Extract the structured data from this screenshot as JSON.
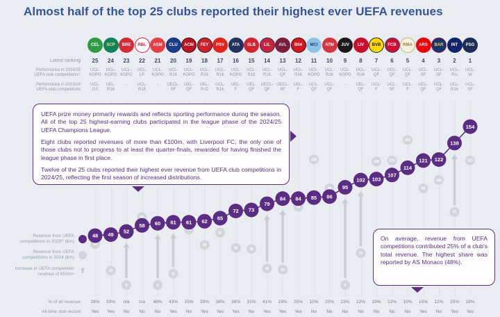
{
  "title": "Almost half of the top 25 clubs reported their highest ever UEFA revenues",
  "accent_colors": {
    "purple": "#5b2c83",
    "gray_dot": "#d2d6db",
    "gray_arrow": "#c8cdd2",
    "title_blue": "#35539c"
  },
  "rows": {
    "latest_ranking": "Latest ranking",
    "perf_2425_line1": "Performance in 2024/25",
    "perf_2425_line2": "UEFA club competitions¹⁾",
    "perf_2324_line1": "Performance in 2023/24",
    "perf_2324_line2": "UEFA club competitions",
    "pct_label": "% of all revenue",
    "record_label": "All-time club record"
  },
  "legend": [
    {
      "label": "Revenue from UEFA competitions in 2025²⁾ (€m)",
      "symbol": "purple-dot"
    },
    {
      "label": "Revenue from UEFA competitions in 2024 (€m)",
      "symbol": "gray-dot"
    },
    {
      "label": "Increase in UEFA competition revenue of €50m+",
      "symbol": "up-arrow"
    }
  ],
  "annotations": {
    "box1": [
      "UEFA prize money primarily rewards and reflects sporting performance during the season. All of the top 25 highest-earning clubs participated in the league phase of the 2024/25 UEFA Champions League.",
      "Eight clubs reported revenues of more than €100m, with Liverpool FC, the only one of those clubs not to progress to at least the quarter-finals, rewarded for having finished the league phase in first place.",
      "Twelve of the 25 clubs reported their highest ever revenue from UEFA club competitions in 2024/25, reflecting the first season of increased distributions."
    ],
    "box2": "On average, revenue from UEFA competitions contributed 25% of a club's total revenue. The highest share was reported by AS Monaco (48%)."
  },
  "clubs": [
    {
      "rank": 25,
      "name": "celtic",
      "abbr": "CEL",
      "logo_bg": "#2e9b46",
      "logo_fg": "#ffffff",
      "logo_border": "#2e9b46",
      "perf_2425": "UCL-KOPO",
      "perf_2324": "UCL-GS",
      "pct": "28%",
      "record": "Yes"
    },
    {
      "rank": 24,
      "name": "sporting-cp",
      "abbr": "SCP",
      "logo_bg": "#11835a",
      "logo_fg": "#ffe27a",
      "logo_border": "#11835a",
      "perf_2425": "UCL-KOPO",
      "perf_2324": "UEL-R16",
      "pct": "33%",
      "record": "Yes"
    },
    {
      "rank": 23,
      "name": "brest",
      "abbr": "BRE",
      "logo_bg": "#d52b35",
      "logo_fg": "#ffffff",
      "logo_border": "#d52b35",
      "perf_2425": "UCL-KOPO",
      "perf_2324": "-",
      "pct": "n/a",
      "record": "No"
    },
    {
      "rank": 22,
      "name": "rb-leipzig",
      "abbr": "RBL",
      "logo_bg": "#ffffff",
      "logo_fg": "#dd1438",
      "logo_border": "#dd1438",
      "perf_2425": "UCL-LP",
      "perf_2324": "UCL-R16",
      "pct": "n/a",
      "record": "No"
    },
    {
      "rank": 21,
      "name": "monaco",
      "abbr": "ASM",
      "logo_bg": "#e53e47",
      "logo_fg": "#ffffff",
      "logo_border": "#e53e47",
      "perf_2425": "UCL-KOPO",
      "perf_2324": "-",
      "pct": "48%",
      "record": "No"
    },
    {
      "rank": 20,
      "name": "club-brugge",
      "abbr": "CLU",
      "logo_bg": "#1b3c8c",
      "logo_fg": "#ffffff",
      "logo_border": "#10265c",
      "perf_2425": "UCL-R16",
      "perf_2324": "UECL-SF",
      "pct": "43%",
      "record": "Yes"
    },
    {
      "rank": 19,
      "name": "ac-milan",
      "abbr": "ACM",
      "logo_bg": "#c0121f",
      "logo_fg": "#ffffff",
      "logo_border": "#1a1a1a",
      "perf_2425": "UCL-KOPO",
      "perf_2324": "UEL-QF",
      "pct": "15%",
      "record": "No"
    },
    {
      "rank": 18,
      "name": "feyenoord",
      "abbr": "FEY",
      "logo_bg": "#d1202b",
      "logo_fg": "#ffffff",
      "logo_border": "#1a1a1a",
      "perf_2425": "UCL-R16",
      "perf_2324": "UEL-P-O",
      "pct": "39%",
      "record": "Yes"
    },
    {
      "rank": 17,
      "name": "psv",
      "abbr": "PSV",
      "logo_bg": "#e3231c",
      "logo_fg": "#ffffff",
      "logo_border": "#e3231c",
      "perf_2425": "UCL-R16",
      "perf_2324": "UCL-R16",
      "pct": "38%",
      "record": "Yes"
    },
    {
      "rank": 16,
      "name": "atalanta",
      "abbr": "ATA",
      "logo_bg": "#23315e",
      "logo_fg": "#ffffff",
      "logo_border": "#23315e",
      "perf_2425": "UCL-KOPO",
      "perf_2324": "UEL-F",
      "pct": "36%",
      "record": "Yes"
    },
    {
      "rank": 15,
      "name": "benfica",
      "abbr": "SLB",
      "logo_bg": "#d32330",
      "logo_fg": "#ffffff",
      "logo_border": "#d32330",
      "perf_2425": "UCL-R16",
      "perf_2324": "UEL-QF",
      "pct": "31%",
      "record": "No"
    },
    {
      "rank": 14,
      "name": "lille",
      "abbr": "LIL",
      "logo_bg": "#ca223a",
      "logo_fg": "#ffffff",
      "logo_border": "#1f2f56",
      "perf_2425": "UCL-R16",
      "perf_2324": "UECL-QF",
      "pct": "41%",
      "record": "Yes"
    },
    {
      "rank": 13,
      "name": "aston-villa",
      "abbr": "AVL",
      "logo_bg": "#7a1e3c",
      "logo_fg": "#cfe4f4",
      "logo_border": "#7a1e3c",
      "perf_2425": "UCL-QF",
      "perf_2324": "UECL-SF",
      "pct": "19%",
      "record": "Yes"
    },
    {
      "rank": 12,
      "name": "leverkusen",
      "abbr": "B04",
      "logo_bg": "#d8141c",
      "logo_fg": "#ffffff",
      "logo_border": "#1a1a1a",
      "perf_2425": "UCL-R16",
      "perf_2324": "UEL-F",
      "pct": "25%",
      "record": "Yes"
    },
    {
      "rank": 11,
      "name": "man-city",
      "abbr": "MCI",
      "logo_bg": "#8ec3e8",
      "logo_fg": "#17406b",
      "logo_border": "#8ec3e8",
      "perf_2425": "UCL-KOPO",
      "perf_2324": "UCL-QF",
      "pct": "10%",
      "record": "No"
    },
    {
      "rank": 10,
      "name": "atletico",
      "abbr": "ATM",
      "logo_bg": "#d6343f",
      "logo_fg": "#ffffff",
      "logo_border": "#d6343f",
      "perf_2425": "UCL-R16",
      "perf_2324": "UCL-QF",
      "pct": "20%",
      "record": "No"
    },
    {
      "rank": 9,
      "name": "juventus",
      "abbr": "JUV",
      "logo_bg": "#1a1a1a",
      "logo_fg": "#ffffff",
      "logo_border": "#1a1a1a",
      "perf_2425": "UCL-KOPO",
      "perf_2324": "-",
      "pct": "23%",
      "record": "No"
    },
    {
      "rank": 8,
      "name": "liverpool",
      "abbr": "LIV",
      "logo_bg": "#c8102e",
      "logo_fg": "#ffffff",
      "logo_border": "#c8102e",
      "perf_2425": "UCL-R16",
      "perf_2324": "UEL-QF",
      "pct": "12%",
      "record": "No"
    },
    {
      "rank": 7,
      "name": "dortmund",
      "abbr": "BVB",
      "logo_bg": "#ffd900",
      "logo_fg": "#1a1a1a",
      "logo_border": "#1a1a1a",
      "perf_2425": "UCL-QF",
      "perf_2324": "UCL-F",
      "pct": "19%",
      "record": "No"
    },
    {
      "rank": 6,
      "name": "bayern",
      "abbr": "FCB",
      "logo_bg": "#d20a2e",
      "logo_fg": "#ffffff",
      "logo_border": "#1f4e8c",
      "perf_2425": "UCL-QF",
      "perf_2324": "UCL-SF",
      "pct": "12%",
      "record": "No"
    },
    {
      "rank": 5,
      "name": "real-madrid",
      "abbr": "RMA",
      "logo_bg": "#f3f1e7",
      "logo_fg": "#9a7d2e",
      "logo_border": "#c9b35c",
      "perf_2425": "UCL-QF",
      "perf_2324": "UCL-F",
      "pct": "10%",
      "record": "No"
    },
    {
      "rank": 4,
      "name": "arsenal",
      "abbr": "ARS",
      "logo_bg": "#ef0107",
      "logo_fg": "#ffffff",
      "logo_border": "#ef0107",
      "perf_2425": "UCL-SF",
      "perf_2324": "UCL-QF",
      "pct": "15%",
      "record": "Yes"
    },
    {
      "rank": 3,
      "name": "barcelona",
      "abbr": "BAR",
      "logo_bg": "#15356e",
      "logo_fg": "#ffce46",
      "logo_border": "#8a1538",
      "perf_2425": "UCL-SF",
      "perf_2324": "UCL-QF",
      "pct": "12%",
      "record": "No"
    },
    {
      "rank": 2,
      "name": "inter",
      "abbr": "INT",
      "logo_bg": "#10246c",
      "logo_fg": "#ffffff",
      "logo_border": "#10246c",
      "perf_2425": "UCL-RU",
      "perf_2324": "UCL-R16",
      "pct": "25%",
      "record": "Yes"
    },
    {
      "rank": 1,
      "name": "psg",
      "abbr": "PSG",
      "logo_bg": "#1c2e54",
      "logo_fg": "#ffffff",
      "logo_border": "#1c2e54",
      "perf_2425": "UCL-W",
      "perf_2324": "UCL-SF",
      "pct": "18%",
      "record": "Yes"
    }
  ],
  "chart_data": {
    "type": "line",
    "title": "Revenue from UEFA competitions by club (ranked 25 to 1)",
    "x_label": "Latest ranking",
    "x": [
      25,
      24,
      23,
      22,
      21,
      20,
      19,
      18,
      17,
      16,
      15,
      14,
      13,
      12,
      11,
      10,
      9,
      8,
      7,
      6,
      5,
      4,
      3,
      2,
      1
    ],
    "series": [
      {
        "name": "Revenue from UEFA competitions in 2025 (€m)",
        "values": [
          48,
          49,
          52,
          58,
          60,
          61,
          61,
          62,
          65,
          72,
          73,
          79,
          84,
          84,
          85,
          86,
          95,
          102,
          103,
          107,
          114,
          121,
          122,
          138,
          154
        ]
      },
      {
        "name": "Revenue from UEFA competitions in 2024 (€m), approximate",
        "values": [
          40,
          14,
          0,
          66,
          0,
          11,
          54,
          39,
          51,
          36,
          35,
          16,
          15,
          76,
          122,
          94,
          0,
          31,
          120,
          121,
          141,
          94,
          102,
          71,
          121
        ]
      }
    ],
    "increase_50m_plus": [
      false,
      false,
      true,
      false,
      true,
      true,
      false,
      false,
      false,
      false,
      false,
      true,
      true,
      false,
      false,
      false,
      true,
      true,
      false,
      false,
      false,
      false,
      false,
      true,
      false
    ],
    "ylim": [
      0,
      160
    ],
    "grid": "vertical-dotted",
    "legend_position": "left"
  }
}
